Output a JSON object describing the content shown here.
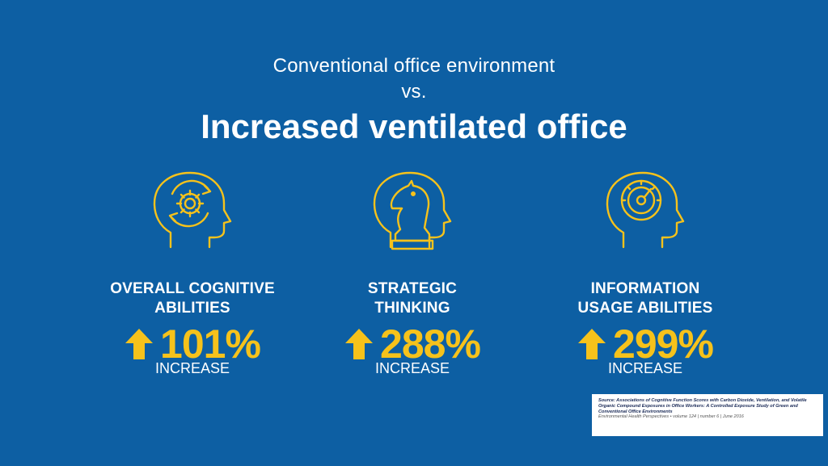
{
  "header": {
    "line1": "Conventional office environment",
    "line2": "vs.",
    "title": "Increased ventilated office"
  },
  "colors": {
    "background": "#0d5fa3",
    "accent": "#f6c21b",
    "text": "#ffffff"
  },
  "stats": [
    {
      "icon": "head-gear-icon",
      "label_line1": "OVERALL COGNITIVE",
      "label_line2": "ABILITIES",
      "value": "101%",
      "unit": "INCREASE"
    },
    {
      "icon": "head-chess-knight-icon",
      "label_line1": "STRATEGIC",
      "label_line2": "THINKING",
      "value": "288%",
      "unit": "INCREASE"
    },
    {
      "icon": "head-gauge-icon",
      "label_line1": "INFORMATION",
      "label_line2": "USAGE ABILITIES",
      "value": "299%",
      "unit": "INCREASE"
    }
  ],
  "source": {
    "text": "Source: Associations of Cognitive Function Scores with Carbon Dioxide, Ventilation, and Volatile Organic Compound Exposures in Office Workers: A Controlled Exposure Study of Green and Conventional Office Environments",
    "reference": "Environmental Health Perspectives • volume 124 | number 6 | June 2016"
  }
}
